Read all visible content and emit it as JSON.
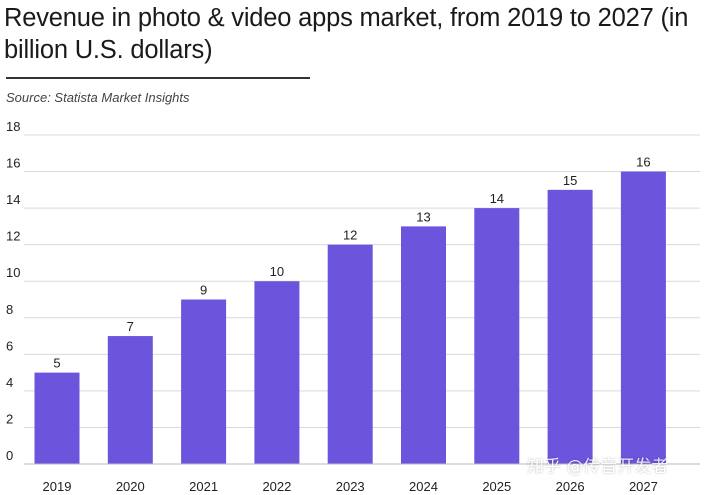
{
  "header": {
    "title": "Revenue in photo & video apps market, from 2019 to 2027 (in billion U.S. dollars)",
    "source": "Source: Statista Market Insights"
  },
  "watermark": "知乎 @传音开发者",
  "colors": {
    "bar": "#6c54dc",
    "grid": "#d9d9d9",
    "text": "#222222"
  },
  "chart_data": {
    "type": "bar",
    "categories": [
      "2019",
      "2020",
      "2021",
      "2022",
      "2023",
      "2024",
      "2025",
      "2026",
      "2027"
    ],
    "values": [
      5,
      7,
      9,
      10,
      12,
      13,
      14,
      15,
      16
    ],
    "data_labels": [
      "5",
      "7",
      "9",
      "10",
      "12",
      "13",
      "14",
      "15",
      "16"
    ],
    "title": "Revenue in photo & video apps market, from 2019 to 2027 (in billion U.S. dollars)",
    "xlabel": "",
    "ylabel": "",
    "ylim": [
      0,
      18
    ],
    "yticks": [
      0,
      2,
      4,
      6,
      8,
      10,
      12,
      14,
      16,
      18
    ],
    "grid": true,
    "legend": "none"
  }
}
